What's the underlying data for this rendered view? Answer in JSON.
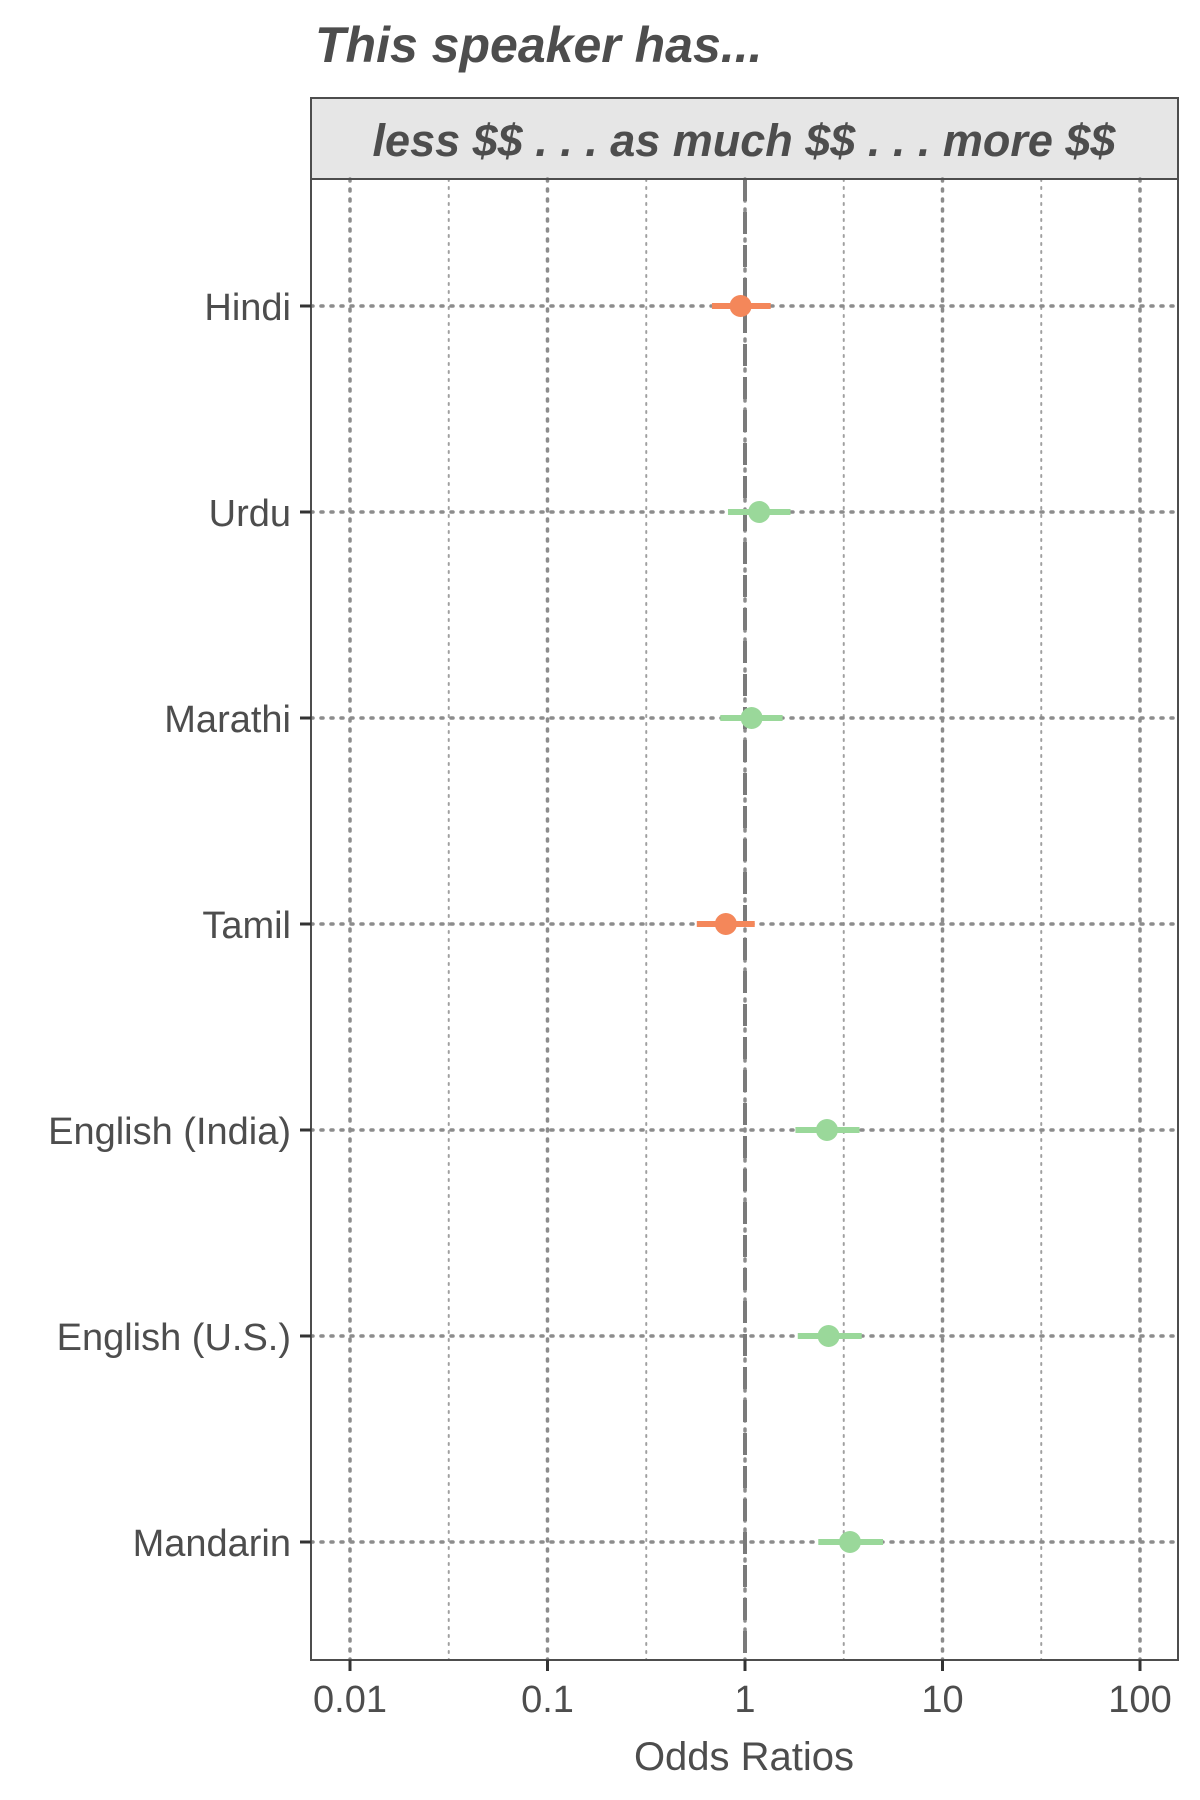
{
  "chart_data": {
    "type": "scatter",
    "subtype": "forest-plot",
    "title": "This speaker has...",
    "strip_label": "less $$ . . . as much $$ . . . more $$",
    "xlabel": "Odds Ratios",
    "ylabel": "",
    "x_scale": "log10",
    "xlim": [
      0.007,
      150
    ],
    "x_ticks": [
      {
        "value": 0.01,
        "label": "0.01"
      },
      {
        "value": 0.1,
        "label": "0.1"
      },
      {
        "value": 1,
        "label": "1"
      },
      {
        "value": 10,
        "label": "10"
      },
      {
        "value": 100,
        "label": "100"
      }
    ],
    "reference_line": 1,
    "grid": true,
    "legend": "none",
    "colors": {
      "below_one": "#f4875a",
      "above_one": "#9ad89a"
    },
    "rows": [
      {
        "label": "Hindi",
        "estimate": 0.95,
        "lower": 0.68,
        "upper": 1.35,
        "group": "below_one"
      },
      {
        "label": "Urdu",
        "estimate": 1.18,
        "lower": 0.82,
        "upper": 1.7,
        "group": "above_one"
      },
      {
        "label": "Marathi",
        "estimate": 1.08,
        "lower": 0.75,
        "upper": 1.55,
        "group": "above_one"
      },
      {
        "label": "Tamil",
        "estimate": 0.8,
        "lower": 0.57,
        "upper": 1.12,
        "group": "below_one"
      },
      {
        "label": "English (India)",
        "estimate": 2.6,
        "lower": 1.8,
        "upper": 3.8,
        "group": "above_one"
      },
      {
        "label": "English (U.S.)",
        "estimate": 2.65,
        "lower": 1.85,
        "upper": 3.9,
        "group": "above_one"
      },
      {
        "label": "Mandarin",
        "estimate": 3.4,
        "lower": 2.35,
        "upper": 5.0,
        "group": "above_one"
      }
    ]
  }
}
